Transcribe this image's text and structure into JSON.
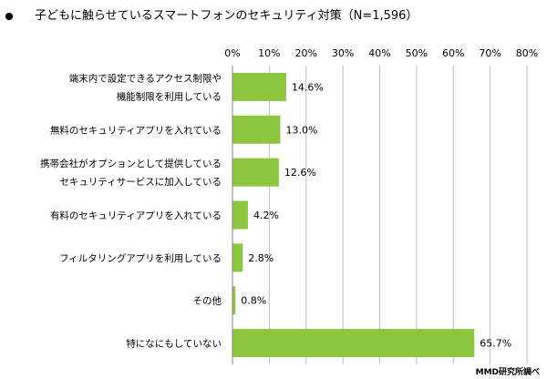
{
  "title": "子どもに触らせているスマートフォンのセキュリティ対策（N=1,596）",
  "credit": "MMD研究所調べ",
  "chart_data": {
    "type": "bar",
    "orientation": "horizontal",
    "title": "子どもに触らせているスマートフォンのセキュリティ対策（N=1,596）",
    "categories": [
      [
        "端末内で設定できるアクセス制限や",
        "機能制限を利用している"
      ],
      [
        "無料のセキュリティアプリを入れている"
      ],
      [
        "携帯会社がオプションとして提供している",
        "セキュリティサービスに加入している"
      ],
      [
        "有料のセキュリティアプリを入れている"
      ],
      [
        "フィルタリングアプリを利用している"
      ],
      [
        "その他"
      ],
      [
        "特になにもしていない"
      ]
    ],
    "values": [
      14.6,
      13.0,
      12.6,
      4.2,
      2.8,
      0.8,
      65.7
    ],
    "value_labels": [
      "14.6%",
      "13.0%",
      "12.6%",
      "4.2%",
      "2.8%",
      "0.8%",
      "65.7%"
    ],
    "xlim": [
      0,
      80
    ],
    "xticks": [
      "0%",
      "10%",
      "20%",
      "30%",
      "40%",
      "50%",
      "60%",
      "70%",
      "80%"
    ],
    "bar_color": "#8dc63f",
    "grid": true
  }
}
